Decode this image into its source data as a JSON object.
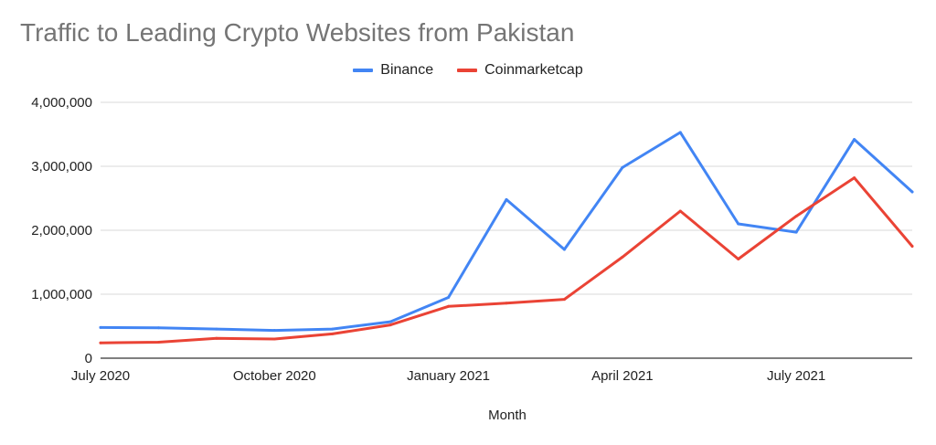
{
  "chart_data": {
    "type": "line",
    "title": "Traffic to Leading Crypto Websites from Pakistan",
    "xlabel": "Month",
    "ylabel": "",
    "x": [
      "Jul 2020",
      "Aug 2020",
      "Sep 2020",
      "Oct 2020",
      "Nov 2020",
      "Dec 2020",
      "Jan 2021",
      "Feb 2021",
      "Mar 2021",
      "Apr 2021",
      "May 2021",
      "Jun 2021",
      "Jul 2021",
      "Aug 2021",
      "Sep 2021"
    ],
    "x_tick_labels": [
      "July 2020",
      "October 2020",
      "January 2021",
      "April 2021",
      "July 2021"
    ],
    "x_tick_months": [
      "Jul 2020",
      "Oct 2020",
      "Jan 2021",
      "Apr 2021",
      "Jul 2021"
    ],
    "y_tick_labels": [
      "0",
      "1,000,000",
      "2,000,000",
      "3,000,000",
      "4,000,000"
    ],
    "y_ticks": [
      0,
      1000000,
      2000000,
      3000000,
      4000000
    ],
    "ylim": [
      0,
      4000000
    ],
    "grid": true,
    "legend_position": "top",
    "series": [
      {
        "name": "Binance",
        "color": "#4285f4",
        "values": [
          480000,
          475000,
          455000,
          435000,
          455000,
          570000,
          950000,
          2480000,
          1700000,
          2980000,
          3530000,
          2100000,
          1970000,
          3420000,
          2600000
        ]
      },
      {
        "name": "Coinmarketcap",
        "color": "#ea4335",
        "values": [
          240000,
          250000,
          310000,
          300000,
          380000,
          520000,
          810000,
          860000,
          920000,
          1580000,
          2300000,
          1550000,
          2220000,
          2820000,
          1750000
        ]
      }
    ]
  }
}
